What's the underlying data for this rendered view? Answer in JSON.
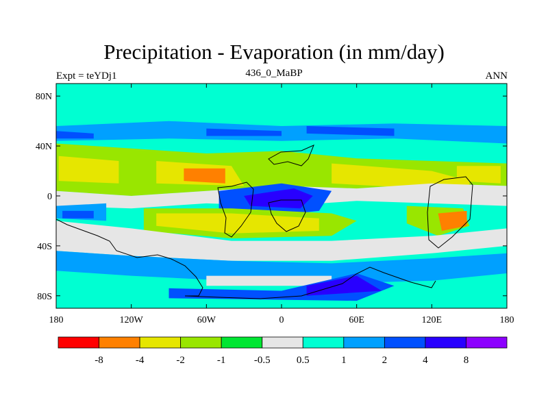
{
  "chart_data": {
    "type": "heatmap",
    "title": "Precipitation - Evaporation (in mm/day)",
    "subtitle_left": "Expt = teYDj1",
    "subtitle_center": "436_0_MaBP",
    "subtitle_right": "ANN",
    "x_ticks": [
      "180",
      "120W",
      "60W",
      "0",
      "60E",
      "120E",
      "180"
    ],
    "y_ticks": [
      "80N",
      "40N",
      "0",
      "40S",
      "80S"
    ],
    "x_range": [
      -180,
      180
    ],
    "y_range": [
      -90,
      90
    ],
    "colorbar": {
      "colors": [
        "#ff0000",
        "#ff8000",
        "#e6e600",
        "#99e600",
        "#00e632",
        "#e6e6e6",
        "#00ffd2",
        "#00a0ff",
        "#0050ff",
        "#2800ff",
        "#8c00ff"
      ],
      "labels": [
        "-8",
        "-4",
        "-2",
        "-1",
        "-0.5",
        "0.5",
        "1",
        "2",
        "4",
        "8"
      ]
    },
    "fields": [
      {
        "color": "#00ffd2",
        "points": [
          [
            -180,
            78
          ],
          [
            180,
            78
          ],
          [
            180,
            -90
          ],
          [
            -180,
            -90
          ]
        ]
      },
      {
        "color": "#00a0ff",
        "points": [
          [
            -180,
            56
          ],
          [
            -90,
            60
          ],
          [
            0,
            56
          ],
          [
            90,
            58
          ],
          [
            180,
            56
          ],
          [
            180,
            42
          ],
          [
            90,
            46
          ],
          [
            0,
            44
          ],
          [
            -90,
            46
          ],
          [
            -180,
            44
          ]
        ]
      },
      {
        "color": "#0050ff",
        "points": [
          [
            -180,
            52
          ],
          [
            -150,
            50
          ],
          [
            -150,
            46
          ],
          [
            -180,
            46
          ]
        ]
      },
      {
        "color": "#0050ff",
        "points": [
          [
            -60,
            54
          ],
          [
            0,
            52
          ],
          [
            0,
            48
          ],
          [
            -60,
            48
          ]
        ]
      },
      {
        "color": "#0050ff",
        "points": [
          [
            20,
            56
          ],
          [
            90,
            54
          ],
          [
            90,
            48
          ],
          [
            20,
            50
          ]
        ]
      },
      {
        "color": "#99e600",
        "points": [
          [
            -180,
            42
          ],
          [
            -120,
            38
          ],
          [
            -60,
            34
          ],
          [
            0,
            36
          ],
          [
            60,
            30
          ],
          [
            120,
            28
          ],
          [
            180,
            26
          ],
          [
            180,
            8
          ],
          [
            120,
            10
          ],
          [
            60,
            6
          ],
          [
            0,
            8
          ],
          [
            -60,
            4
          ],
          [
            -120,
            0
          ],
          [
            -180,
            4
          ]
        ]
      },
      {
        "color": "#e6e600",
        "points": [
          [
            -178,
            32
          ],
          [
            -130,
            28
          ],
          [
            -130,
            10
          ],
          [
            -178,
            12
          ]
        ]
      },
      {
        "color": "#e6e600",
        "points": [
          [
            -100,
            28
          ],
          [
            -40,
            24
          ],
          [
            -30,
            8
          ],
          [
            -100,
            10
          ]
        ]
      },
      {
        "color": "#ff8000",
        "points": [
          [
            -78,
            22
          ],
          [
            -45,
            22
          ],
          [
            -45,
            10
          ],
          [
            -78,
            12
          ]
        ]
      },
      {
        "color": "#e6e600",
        "points": [
          [
            40,
            26
          ],
          [
            120,
            20
          ],
          [
            150,
            12
          ],
          [
            150,
            4
          ],
          [
            40,
            10
          ]
        ]
      },
      {
        "color": "#e6e600",
        "points": [
          [
            140,
            24
          ],
          [
            175,
            24
          ],
          [
            175,
            10
          ],
          [
            140,
            12
          ]
        ]
      },
      {
        "color": "#e6e6e6",
        "points": [
          [
            -180,
            4
          ],
          [
            -120,
            0
          ],
          [
            -60,
            4
          ],
          [
            0,
            8
          ],
          [
            60,
            6
          ],
          [
            120,
            10
          ],
          [
            180,
            8
          ],
          [
            180,
            -8
          ],
          [
            120,
            -6
          ],
          [
            60,
            -4
          ],
          [
            0,
            -8
          ],
          [
            -60,
            -6
          ],
          [
            -120,
            -10
          ],
          [
            -180,
            -8
          ]
        ]
      },
      {
        "color": "#0050ff",
        "points": [
          [
            -50,
            4
          ],
          [
            0,
            10
          ],
          [
            40,
            4
          ],
          [
            30,
            -12
          ],
          [
            -10,
            -16
          ],
          [
            -50,
            -10
          ]
        ]
      },
      {
        "color": "#2800ff",
        "points": [
          [
            -30,
            0
          ],
          [
            10,
            6
          ],
          [
            25,
            0
          ],
          [
            15,
            -10
          ],
          [
            -25,
            -8
          ]
        ]
      },
      {
        "color": "#00a0ff",
        "points": [
          [
            -180,
            -8
          ],
          [
            -140,
            -6
          ],
          [
            -140,
            -20
          ],
          [
            -180,
            -18
          ]
        ]
      },
      {
        "color": "#0050ff",
        "points": [
          [
            -175,
            -12
          ],
          [
            -150,
            -12
          ],
          [
            -150,
            -18
          ],
          [
            -175,
            -18
          ]
        ]
      },
      {
        "color": "#99e600",
        "points": [
          [
            -110,
            -10
          ],
          [
            -40,
            -10
          ],
          [
            40,
            -14
          ],
          [
            60,
            -20
          ],
          [
            40,
            -32
          ],
          [
            -40,
            -34
          ],
          [
            -110,
            -28
          ]
        ]
      },
      {
        "color": "#e6e600",
        "points": [
          [
            -100,
            -14
          ],
          [
            -40,
            -14
          ],
          [
            30,
            -18
          ],
          [
            30,
            -28
          ],
          [
            -40,
            -30
          ],
          [
            -100,
            -24
          ]
        ]
      },
      {
        "color": "#99e600",
        "points": [
          [
            100,
            -8
          ],
          [
            145,
            -10
          ],
          [
            150,
            -24
          ],
          [
            125,
            -32
          ],
          [
            100,
            -22
          ]
        ]
      },
      {
        "color": "#ff8000",
        "points": [
          [
            125,
            -14
          ],
          [
            148,
            -12
          ],
          [
            148,
            -24
          ],
          [
            128,
            -28
          ]
        ]
      },
      {
        "color": "#e6e6e6",
        "points": [
          [
            -180,
            -20
          ],
          [
            -120,
            -26
          ],
          [
            -40,
            -36
          ],
          [
            40,
            -36
          ],
          [
            120,
            -32
          ],
          [
            180,
            -26
          ],
          [
            180,
            -40
          ],
          [
            120,
            -46
          ],
          [
            40,
            -52
          ],
          [
            -40,
            -52
          ],
          [
            -120,
            -48
          ],
          [
            -180,
            -44
          ]
        ]
      },
      {
        "color": "#00a0ff",
        "points": [
          [
            -180,
            -44
          ],
          [
            -120,
            -48
          ],
          [
            -40,
            -52
          ],
          [
            40,
            -54
          ],
          [
            120,
            -50
          ],
          [
            180,
            -46
          ],
          [
            180,
            -62
          ],
          [
            120,
            -68
          ],
          [
            40,
            -70
          ],
          [
            -40,
            -68
          ],
          [
            -120,
            -64
          ],
          [
            -180,
            -60
          ]
        ]
      },
      {
        "color": "#e6e6e6",
        "points": [
          [
            -60,
            -64
          ],
          [
            40,
            -64
          ],
          [
            40,
            -72
          ],
          [
            -60,
            -72
          ]
        ]
      },
      {
        "color": "#0050ff",
        "points": [
          [
            -90,
            -74
          ],
          [
            0,
            -76
          ],
          [
            60,
            -62
          ],
          [
            90,
            -72
          ],
          [
            60,
            -84
          ],
          [
            -90,
            -82
          ]
        ]
      },
      {
        "color": "#2800ff",
        "points": [
          [
            20,
            -72
          ],
          [
            60,
            -64
          ],
          [
            80,
            -76
          ],
          [
            20,
            -80
          ]
        ]
      }
    ]
  }
}
